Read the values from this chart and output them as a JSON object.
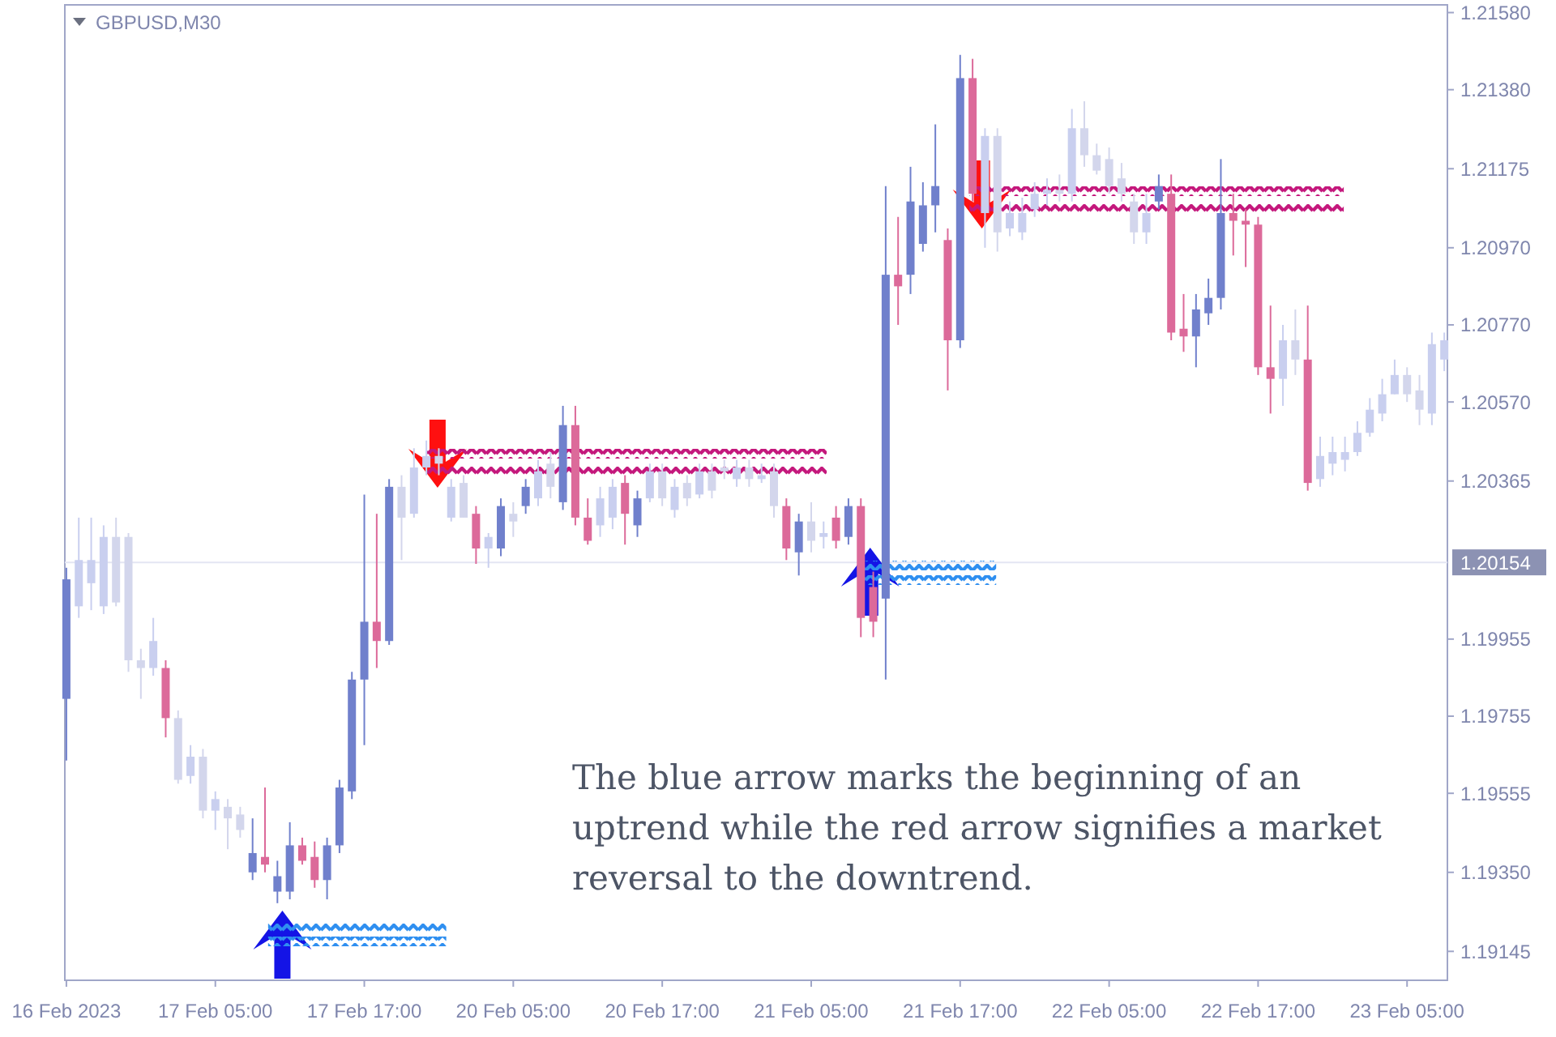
{
  "chart_data": {
    "type": "candlestick",
    "title": "GBPUSD,M30",
    "annotations": [
      "The blue arrow marks the beginning of an uptrend while the red arrow signifies a market reversal to the downtrend."
    ],
    "categories": [
      "16 Feb 2023",
      null,
      null,
      null,
      null,
      null,
      null,
      null,
      null,
      null,
      null,
      null,
      "17 Feb 05:00",
      null,
      null,
      null,
      null,
      null,
      null,
      null,
      null,
      null,
      null,
      null,
      "17 Feb 17:00",
      null,
      null,
      null,
      null,
      null,
      null,
      null,
      null,
      null,
      null,
      null,
      "20 Feb 05:00",
      null,
      null,
      null,
      null,
      null,
      null,
      null,
      null,
      null,
      null,
      null,
      "20 Feb 17:00",
      null,
      null,
      null,
      null,
      null,
      null,
      null,
      null,
      null,
      null,
      null,
      "21 Feb 05:00",
      null,
      null,
      null,
      null,
      null,
      null,
      null,
      null,
      null,
      null,
      null,
      "21 Feb 17:00",
      null,
      null,
      null,
      null,
      null,
      null,
      null,
      null,
      null,
      null,
      null,
      "22 Feb 05:00",
      null,
      null,
      null,
      null,
      null,
      null,
      null,
      null,
      null,
      null,
      null,
      "22 Feb 17:00",
      null,
      null,
      null,
      null,
      null,
      null,
      null,
      null,
      null,
      null,
      null,
      "23 Feb 05:00",
      null,
      null,
      null
    ],
    "ohlc": [
      [
        1.198,
        1.2014,
        1.1964,
        1.2011
      ],
      [
        1.2004,
        1.2027,
        1.2001,
        1.2016
      ],
      [
        1.201,
        1.2027,
        1.2003,
        1.2016
      ],
      [
        1.2004,
        1.2025,
        1.2002,
        1.2022
      ],
      [
        1.2022,
        1.2027,
        1.2004,
        1.2005
      ],
      [
        1.2022,
        1.2023,
        1.1987,
        1.199
      ],
      [
        1.199,
        1.1993,
        1.198,
        1.1988
      ],
      [
        1.1988,
        1.2001,
        1.1986,
        1.1995
      ],
      [
        1.1988,
        1.199,
        1.197,
        1.1975
      ],
      [
        1.1975,
        1.1977,
        1.1958,
        1.1959
      ],
      [
        1.196,
        1.1968,
        1.1958,
        1.1965
      ],
      [
        1.1965,
        1.1967,
        1.1949,
        1.1951
      ],
      [
        1.1951,
        1.1956,
        1.1946,
        1.1954
      ],
      [
        1.1952,
        1.1954,
        1.1941,
        1.1949
      ],
      [
        1.195,
        1.1952,
        1.1944,
        1.1946
      ],
      [
        1.1935,
        1.1949,
        1.1933,
        1.194
      ],
      [
        1.1939,
        1.1957,
        1.1935,
        1.1937
      ],
      [
        1.193,
        1.1938,
        1.1927,
        1.1934
      ],
      [
        1.193,
        1.1948,
        1.1928,
        1.1942
      ],
      [
        1.1942,
        1.1944,
        1.1937,
        1.1938
      ],
      [
        1.1939,
        1.1943,
        1.1931,
        1.1933
      ],
      [
        1.1933,
        1.1944,
        1.1928,
        1.1942
      ],
      [
        1.1942,
        1.1959,
        1.194,
        1.1957
      ],
      [
        1.1956,
        1.1987,
        1.1954,
        1.1985
      ],
      [
        1.1985,
        1.2033,
        1.1968,
        1.2
      ],
      [
        1.2,
        1.2028,
        1.1988,
        1.1995
      ],
      [
        1.1995,
        1.2037,
        1.1994,
        1.2035
      ],
      [
        1.2035,
        1.2038,
        1.2016,
        1.2027
      ],
      [
        1.2028,
        1.2045,
        1.2027,
        1.204
      ],
      [
        1.204,
        1.2047,
        1.2038,
        1.2043
      ],
      [
        1.2043,
        1.2045,
        1.2038,
        1.2041
      ],
      [
        1.2027,
        1.2037,
        1.2026,
        1.2035
      ],
      [
        1.2036,
        1.2038,
        1.2027,
        1.2027
      ],
      [
        1.2028,
        1.203,
        1.2015,
        1.2019
      ],
      [
        1.2019,
        1.2023,
        1.2014,
        1.2022
      ],
      [
        1.2019,
        1.2032,
        1.2017,
        1.203
      ],
      [
        1.2028,
        1.2031,
        1.2022,
        1.2026
      ],
      [
        1.203,
        1.2037,
        1.2028,
        1.2035
      ],
      [
        1.2032,
        1.2042,
        1.203,
        1.2039
      ],
      [
        1.2041,
        1.2044,
        1.2032,
        1.2035
      ],
      [
        1.2031,
        1.2056,
        1.2029,
        1.2051
      ],
      [
        1.2051,
        1.2056,
        1.2025,
        1.2027
      ],
      [
        1.2027,
        1.2032,
        1.202,
        1.2021
      ],
      [
        1.2025,
        1.2035,
        1.2022,
        1.2032
      ],
      [
        1.2027,
        1.2037,
        1.2024,
        1.2035
      ],
      [
        1.2036,
        1.2038,
        1.202,
        1.2028
      ],
      [
        1.2025,
        1.2034,
        1.2022,
        1.2032
      ],
      [
        1.2032,
        1.2041,
        1.2031,
        1.2039
      ],
      [
        1.2039,
        1.2041,
        1.203,
        1.2032
      ],
      [
        1.2029,
        1.2037,
        1.2027,
        1.2035
      ],
      [
        1.2036,
        1.2038,
        1.203,
        1.2032
      ],
      [
        1.2033,
        1.2041,
        1.2032,
        1.2039
      ],
      [
        1.2039,
        1.2041,
        1.2032,
        1.2034
      ],
      [
        1.204,
        1.2042,
        1.2037,
        1.2039
      ],
      [
        1.2037,
        1.2042,
        1.2035,
        1.204
      ],
      [
        1.204,
        1.2042,
        1.2035,
        1.2037
      ],
      [
        1.2037,
        1.2041,
        1.2036,
        1.2038
      ],
      [
        1.2039,
        1.2041,
        1.2027,
        1.203
      ],
      [
        1.203,
        1.2032,
        1.2016,
        1.2019
      ],
      [
        1.2018,
        1.2028,
        1.2012,
        1.2026
      ],
      [
        1.2026,
        1.2031,
        1.2018,
        1.2021
      ],
      [
        1.2022,
        1.2026,
        1.2019,
        1.2023
      ],
      [
        1.2027,
        1.203,
        1.2019,
        1.2021
      ],
      [
        1.2022,
        1.2032,
        1.202,
        1.203
      ],
      [
        1.203,
        1.2032,
        1.1996,
        1.2001
      ],
      [
        1.2009,
        1.2013,
        1.1996,
        1.2
      ],
      [
        1.2006,
        1.2113,
        1.1985,
        1.209
      ],
      [
        1.209,
        1.2105,
        1.2077,
        1.2087
      ],
      [
        1.209,
        1.2118,
        1.2085,
        1.2109
      ],
      [
        1.2098,
        1.2114,
        1.2096,
        1.2108
      ],
      [
        1.2108,
        1.2129,
        1.2101,
        1.2113
      ],
      [
        1.2099,
        1.2102,
        1.206,
        1.2073
      ],
      [
        1.2073,
        1.2147,
        1.2071,
        1.2141
      ],
      [
        1.2141,
        1.2146,
        1.2109,
        1.2111
      ],
      [
        1.2106,
        1.2128,
        1.2097,
        1.2126
      ],
      [
        1.2126,
        1.2128,
        1.2096,
        1.2101
      ],
      [
        1.2102,
        1.2109,
        1.21,
        1.2106
      ],
      [
        1.2101,
        1.211,
        1.2099,
        1.2106
      ],
      [
        1.2107,
        1.2114,
        1.2105,
        1.2111
      ],
      [
        1.2111,
        1.2115,
        1.2108,
        1.2112
      ],
      [
        1.2112,
        1.2116,
        1.2109,
        1.2111
      ],
      [
        1.2111,
        1.2133,
        1.2109,
        1.2128
      ],
      [
        1.2128,
        1.2135,
        1.2118,
        1.2121
      ],
      [
        1.2121,
        1.2124,
        1.2116,
        1.2117
      ],
      [
        1.212,
        1.2123,
        1.2111,
        1.2113
      ],
      [
        1.2115,
        1.2119,
        1.2109,
        1.2111
      ],
      [
        1.2109,
        1.2111,
        1.2098,
        1.2101
      ],
      [
        1.2101,
        1.2111,
        1.2098,
        1.2106
      ],
      [
        1.2109,
        1.2116,
        1.2107,
        1.2113
      ],
      [
        1.2111,
        1.2116,
        1.2073,
        1.2075
      ],
      [
        1.2076,
        1.2085,
        1.207,
        1.2074
      ],
      [
        1.2074,
        1.2085,
        1.2066,
        1.2081
      ],
      [
        1.208,
        1.2089,
        1.2077,
        1.2084
      ],
      [
        1.2084,
        1.212,
        1.2081,
        1.2106
      ],
      [
        1.2106,
        1.2111,
        1.2095,
        1.2104
      ],
      [
        1.2104,
        1.2107,
        1.2092,
        1.2103
      ],
      [
        1.2103,
        1.2105,
        1.2064,
        1.2066
      ],
      [
        1.2066,
        1.2082,
        1.2054,
        1.2063
      ],
      [
        1.2063,
        1.2077,
        1.2056,
        1.2073
      ],
      [
        1.2073,
        1.2081,
        1.2064,
        1.2068
      ],
      [
        1.2068,
        1.2082,
        1.2034,
        1.2036
      ],
      [
        1.2037,
        1.2048,
        1.2035,
        1.2043
      ],
      [
        1.2041,
        1.2048,
        1.2038,
        1.2044
      ],
      [
        1.2042,
        1.2048,
        1.2039,
        1.2044
      ],
      [
        1.2044,
        1.2052,
        1.2043,
        1.2049
      ],
      [
        1.2049,
        1.2058,
        1.2048,
        1.2055
      ],
      [
        1.2054,
        1.2063,
        1.2052,
        1.2059
      ],
      [
        1.2059,
        1.2068,
        1.2059,
        1.2064
      ],
      [
        1.2064,
        1.2066,
        1.2057,
        1.2059
      ],
      [
        1.206,
        1.2064,
        1.2051,
        1.2055
      ],
      [
        1.2054,
        1.2075,
        1.2051,
        1.2072
      ],
      [
        1.2068,
        1.2075,
        1.2065,
        1.2073
      ]
    ],
    "colors": [
      "#7080cc",
      "#c9cfef",
      "#c9cfef",
      "#c9cfef",
      "#d3d6ec",
      "#d3d6ec",
      "#d3d6ec",
      "#c9cfef",
      "#dc6a9a",
      "#d3d6ec",
      "#c9cfef",
      "#d3d6ec",
      "#c9cfef",
      "#d3d6ec",
      "#d3d6ec",
      "#7080cc",
      "#dc6a9a",
      "#7080cc",
      "#7080cc",
      "#dc6a9a",
      "#dc6a9a",
      "#7080cc",
      "#7080cc",
      "#7080cc",
      "#7080cc",
      "#dc6a9a",
      "#7080cc",
      "#d3d6ec",
      "#c9cfef",
      "#c9cfef",
      "#d3d6ec",
      "#c9cfef",
      "#d3d6ec",
      "#dc6a9a",
      "#c9cfef",
      "#7080cc",
      "#d3d6ec",
      "#7080cc",
      "#c9cfef",
      "#d3d6ec",
      "#7080cc",
      "#dc6a9a",
      "#dc6a9a",
      "#c9cfef",
      "#c9cfef",
      "#dc6a9a",
      "#7080cc",
      "#c9cfef",
      "#d3d6ec",
      "#c9cfef",
      "#d3d6ec",
      "#c9cfef",
      "#d3d6ec",
      "#d3d6ec",
      "#c9cfef",
      "#d3d6ec",
      "#c9cfef",
      "#d3d6ec",
      "#dc6a9a",
      "#7080cc",
      "#d3d6ec",
      "#c9cfef",
      "#dc6a9a",
      "#7080cc",
      "#dc6a9a",
      "#dc6a9a",
      "#7080cc",
      "#dc6a9a",
      "#7080cc",
      "#7080cc",
      "#7080cc",
      "#dc6a9a",
      "#7080cc",
      "#dc6a9a",
      "#c9cfef",
      "#d3d6ec",
      "#c9cfef",
      "#c9cfef",
      "#c9cfef",
      "#c9cfef",
      "#d3d6ec",
      "#c9cfef",
      "#d3d6ec",
      "#d3d6ec",
      "#d3d6ec",
      "#d3d6ec",
      "#d3d6ec",
      "#c9cfef",
      "#7080cc",
      "#dc6a9a",
      "#dc6a9a",
      "#7080cc",
      "#7080cc",
      "#7080cc",
      "#dc6a9a",
      "#dc6a9a",
      "#dc6a9a",
      "#dc6a9a",
      "#c9cfef",
      "#d3d6ec",
      "#dc6a9a",
      "#c9cfef",
      "#c9cfef",
      "#c9cfef",
      "#c9cfef",
      "#c9cfef",
      "#c9cfef",
      "#c9cfef",
      "#d3d6ec",
      "#d3d6ec",
      "#c9cfef",
      "#c9cfef"
    ],
    "ylim": [
      1.1907,
      1.216
    ],
    "yticks": [
      {
        "value": 1.2158,
        "label": "1.21580"
      },
      {
        "value": 1.2138,
        "label": "1.21380"
      },
      {
        "value": 1.21175,
        "label": "1.21175"
      },
      {
        "value": 1.2097,
        "label": "1.20970"
      },
      {
        "value": 1.2077,
        "label": "1.20770"
      },
      {
        "value": 1.2057,
        "label": "1.20570"
      },
      {
        "value": 1.20365,
        "label": "1.20365"
      },
      {
        "value": 1.19955,
        "label": "1.19955"
      },
      {
        "value": 1.19755,
        "label": "1.19755"
      },
      {
        "value": 1.19555,
        "label": "1.19555"
      },
      {
        "value": 1.1935,
        "label": "1.19350"
      },
      {
        "value": 1.19145,
        "label": "1.19145"
      }
    ],
    "ref_lines": [
      {
        "axis": "y",
        "value": 1.20154,
        "label": "1.20154",
        "color": "#e4e6f3"
      }
    ]
  }
}
